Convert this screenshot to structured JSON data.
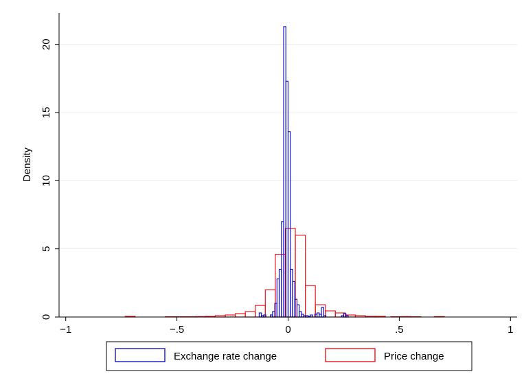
{
  "chart_data": {
    "type": "histogram",
    "title": "",
    "xlabel": "",
    "ylabel": "Density",
    "xlim": [
      -1.03,
      1.03
    ],
    "ylim": [
      0,
      22.3
    ],
    "x_ticks": [
      -1,
      -0.5,
      0,
      0.5,
      1
    ],
    "x_tick_labels": [
      "−1",
      "−.5",
      "0",
      ".5",
      "1"
    ],
    "y_ticks": [
      0,
      5,
      10,
      15,
      20
    ],
    "y_tick_labels": [
      "0",
      "5",
      "10",
      "15",
      "20"
    ],
    "grid": "horizontal",
    "legend_position": "bottom",
    "series": [
      {
        "name": "Exchange rate change",
        "color": "#1515c8",
        "bin_width": 0.01,
        "bins": [
          [
            -0.13,
            0.3
          ],
          [
            -0.12,
            0.1
          ],
          [
            -0.11,
            0.15
          ],
          [
            -0.08,
            0.15
          ],
          [
            -0.07,
            0.4
          ],
          [
            -0.06,
            1.0
          ],
          [
            -0.05,
            2.8
          ],
          [
            -0.04,
            3.5
          ],
          [
            -0.03,
            7.0
          ],
          [
            -0.02,
            21.3
          ],
          [
            -0.01,
            17.3
          ],
          [
            0.0,
            13.6
          ],
          [
            0.01,
            3.5
          ],
          [
            0.02,
            2.6
          ],
          [
            0.03,
            1.3
          ],
          [
            0.04,
            0.9
          ],
          [
            0.05,
            0.4
          ],
          [
            0.06,
            0.2
          ],
          [
            0.07,
            0.1
          ],
          [
            0.08,
            0.1
          ],
          [
            0.09,
            0.05
          ],
          [
            0.1,
            0.15
          ],
          [
            0.12,
            0.2
          ],
          [
            0.13,
            0.3
          ],
          [
            0.14,
            0.2
          ],
          [
            0.15,
            0.7
          ],
          [
            0.16,
            0.1
          ],
          [
            0.24,
            0.1
          ],
          [
            0.25,
            0.25
          ],
          [
            0.26,
            0.1
          ]
        ]
      },
      {
        "name": "Price change",
        "color": "#e8151b",
        "bin_width": 0.045,
        "bins": [
          [
            -0.7325,
            0.05
          ],
          [
            -0.5525,
            0.02
          ],
          [
            -0.5075,
            0.02
          ],
          [
            -0.4625,
            0.02
          ],
          [
            -0.4175,
            0.03
          ],
          [
            -0.3725,
            0.05
          ],
          [
            -0.3275,
            0.1
          ],
          [
            -0.2825,
            0.15
          ],
          [
            -0.2375,
            0.25
          ],
          [
            -0.1925,
            0.4
          ],
          [
            -0.1475,
            0.85
          ],
          [
            -0.1025,
            2.0
          ],
          [
            -0.0575,
            4.6
          ],
          [
            -0.0125,
            6.5
          ],
          [
            0.0325,
            6.0
          ],
          [
            0.0775,
            2.3
          ],
          [
            0.1225,
            0.9
          ],
          [
            0.1675,
            0.45
          ],
          [
            0.2125,
            0.3
          ],
          [
            0.2575,
            0.15
          ],
          [
            0.3025,
            0.1
          ],
          [
            0.3475,
            0.05
          ],
          [
            0.3925,
            0.05
          ],
          [
            0.4625,
            0.02
          ],
          [
            0.5075,
            0.03
          ],
          [
            0.5525,
            0.02
          ],
          [
            0.6575,
            0.03
          ]
        ]
      }
    ]
  }
}
